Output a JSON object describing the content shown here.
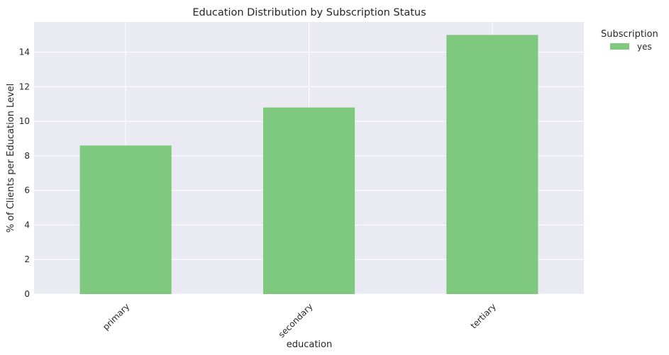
{
  "chart_data": {
    "type": "bar",
    "title": "Education Distribution by Subscription Status",
    "xlabel": "education",
    "ylabel": "% of Clients per Education Level",
    "categories": [
      "primary",
      "secondary",
      "tertiary"
    ],
    "series": [
      {
        "name": "yes",
        "values": [
          8.6,
          10.8,
          15.0
        ],
        "color": "#7fc97f"
      }
    ],
    "ylim": [
      0,
      15.75
    ],
    "yticks": [
      0,
      2,
      4,
      6,
      8,
      10,
      12,
      14
    ],
    "grid": true,
    "legend": {
      "title": "Subscription",
      "placement": "outside-top-right"
    },
    "colors": {
      "plot_background": "#eaeaf2",
      "grid": "#ffffff"
    }
  }
}
